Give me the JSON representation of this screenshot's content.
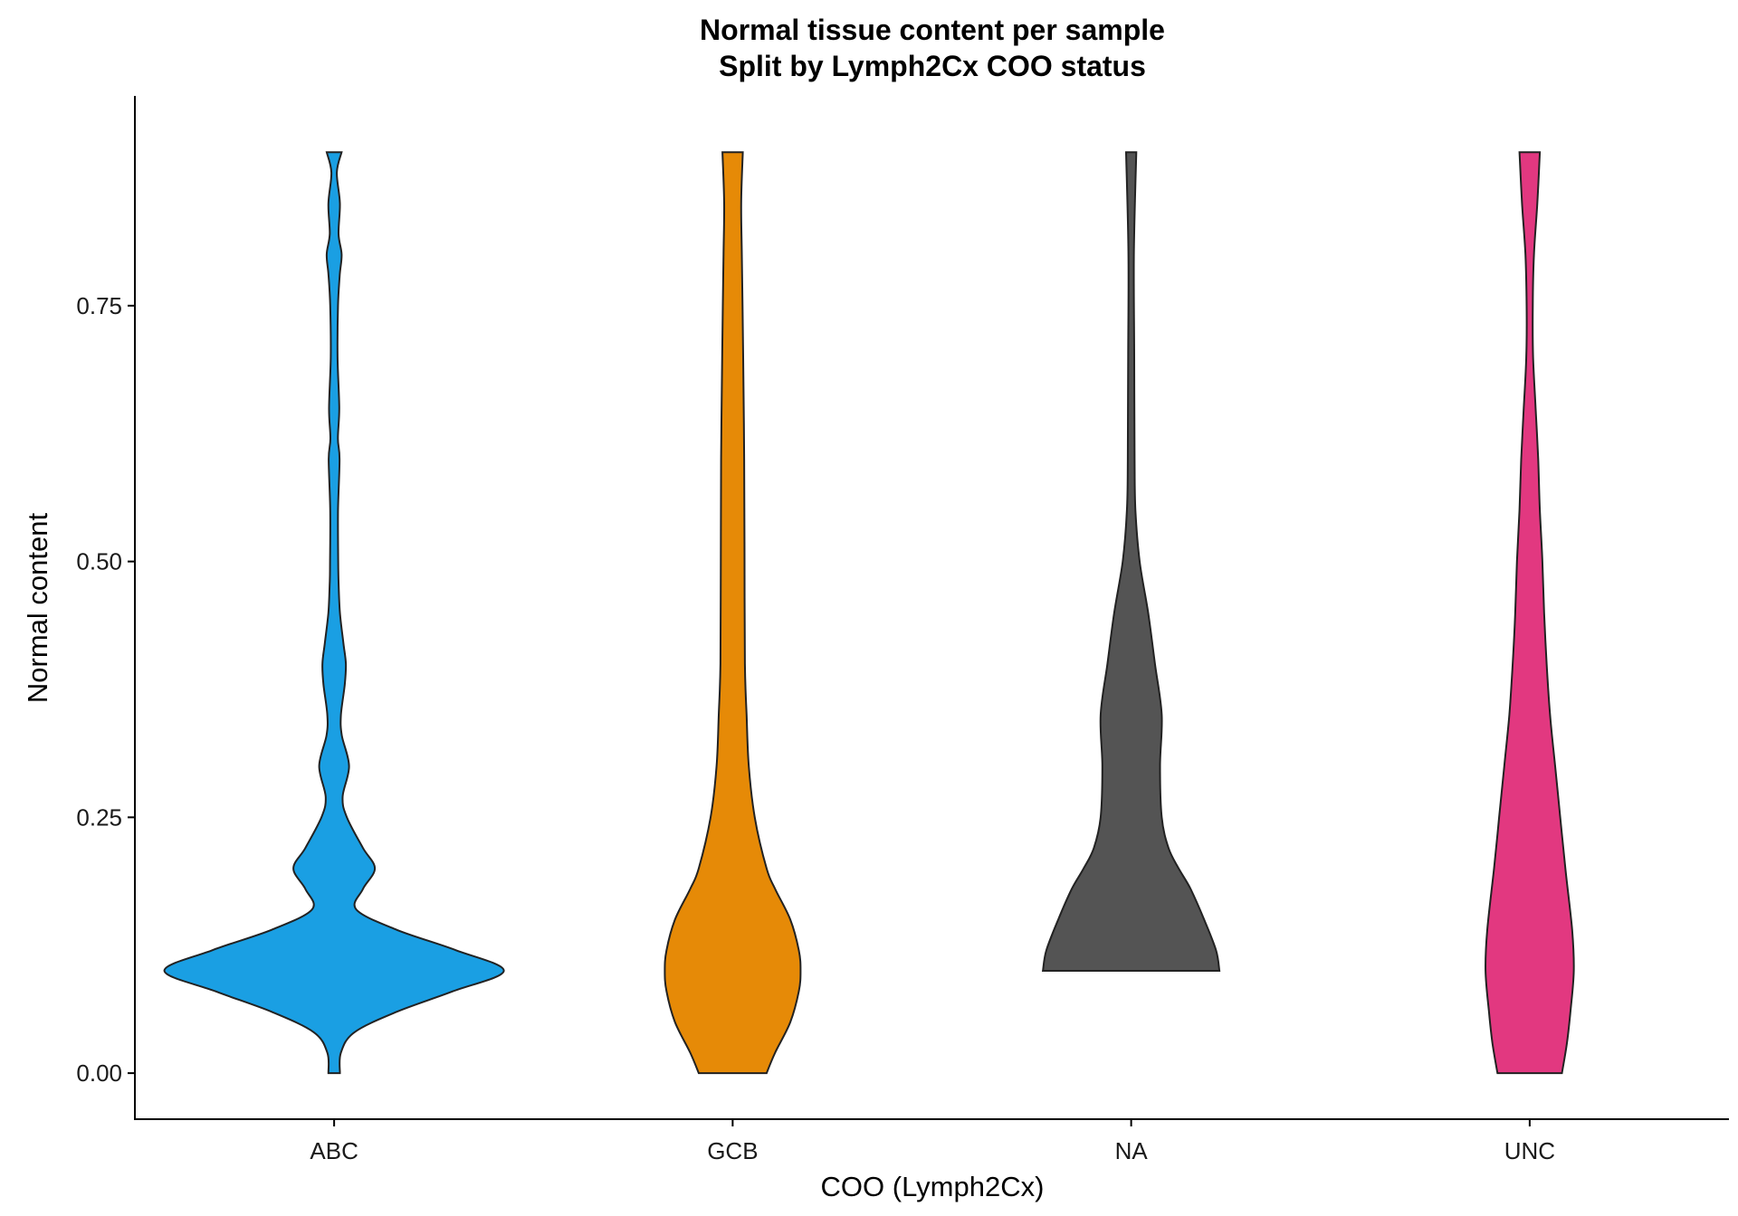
{
  "chart_data": {
    "type": "violin",
    "title": "Normal tissue content per sample",
    "subtitle": "Split by Lymph2Cx COO status",
    "xlabel": "COO (Lymph2Cx)",
    "ylabel": "Normal content",
    "ylim": [
      -0.045,
      0.955
    ],
    "yticks": [
      0,
      0.25,
      0.5,
      0.75
    ],
    "ytick_labels": [
      "0.00",
      "0.25",
      "0.50",
      "0.75"
    ],
    "grid": false,
    "legend": "none",
    "categories": [
      "ABC",
      "GCB",
      "NA",
      "UNC"
    ],
    "series": [
      {
        "category": "ABC",
        "color": "#1a9fe3",
        "range": [
          0.0,
          0.9
        ],
        "density": [
          [
            0.0,
            0.034
          ],
          [
            0.02,
            0.04
          ],
          [
            0.04,
            0.12
          ],
          [
            0.06,
            0.37
          ],
          [
            0.08,
            0.7
          ],
          [
            0.1,
            1.0
          ],
          [
            0.12,
            0.72
          ],
          [
            0.14,
            0.37
          ],
          [
            0.16,
            0.13
          ],
          [
            0.18,
            0.17
          ],
          [
            0.2,
            0.24
          ],
          [
            0.22,
            0.17
          ],
          [
            0.25,
            0.075
          ],
          [
            0.27,
            0.05
          ],
          [
            0.3,
            0.088
          ],
          [
            0.33,
            0.045
          ],
          [
            0.35,
            0.04
          ],
          [
            0.38,
            0.063
          ],
          [
            0.4,
            0.069
          ],
          [
            0.42,
            0.055
          ],
          [
            0.45,
            0.034
          ],
          [
            0.48,
            0.026
          ],
          [
            0.5,
            0.024
          ],
          [
            0.55,
            0.023
          ],
          [
            0.6,
            0.032
          ],
          [
            0.62,
            0.022
          ],
          [
            0.65,
            0.03
          ],
          [
            0.7,
            0.02
          ],
          [
            0.75,
            0.023
          ],
          [
            0.78,
            0.033
          ],
          [
            0.8,
            0.044
          ],
          [
            0.82,
            0.026
          ],
          [
            0.85,
            0.034
          ],
          [
            0.88,
            0.016
          ],
          [
            0.9,
            0.044
          ]
        ]
      },
      {
        "category": "GCB",
        "color": "#e68a07",
        "range": [
          0.0,
          0.9
        ],
        "density": [
          [
            0.0,
            0.2
          ],
          [
            0.02,
            0.25
          ],
          [
            0.05,
            0.34
          ],
          [
            0.08,
            0.39
          ],
          [
            0.1,
            0.4
          ],
          [
            0.12,
            0.39
          ],
          [
            0.15,
            0.34
          ],
          [
            0.18,
            0.25
          ],
          [
            0.2,
            0.2
          ],
          [
            0.25,
            0.13
          ],
          [
            0.3,
            0.095
          ],
          [
            0.35,
            0.082
          ],
          [
            0.4,
            0.072
          ],
          [
            0.5,
            0.07
          ],
          [
            0.6,
            0.068
          ],
          [
            0.7,
            0.062
          ],
          [
            0.75,
            0.058
          ],
          [
            0.8,
            0.054
          ],
          [
            0.85,
            0.05
          ],
          [
            0.9,
            0.06
          ]
        ]
      },
      {
        "category": "NA",
        "color": "#545454",
        "range": [
          0.1,
          0.9
        ],
        "density": [
          [
            0.1,
            0.52
          ],
          [
            0.12,
            0.5
          ],
          [
            0.15,
            0.43
          ],
          [
            0.18,
            0.35
          ],
          [
            0.2,
            0.28
          ],
          [
            0.22,
            0.22
          ],
          [
            0.25,
            0.18
          ],
          [
            0.3,
            0.17
          ],
          [
            0.35,
            0.18
          ],
          [
            0.4,
            0.14
          ],
          [
            0.45,
            0.1
          ],
          [
            0.5,
            0.05
          ],
          [
            0.55,
            0.025
          ],
          [
            0.6,
            0.02
          ],
          [
            0.7,
            0.018
          ],
          [
            0.8,
            0.016
          ],
          [
            0.9,
            0.03
          ]
        ]
      },
      {
        "category": "UNC",
        "color": "#e23880",
        "range": [
          0.0,
          0.9
        ],
        "density": [
          [
            0.0,
            0.19
          ],
          [
            0.03,
            0.22
          ],
          [
            0.06,
            0.24
          ],
          [
            0.1,
            0.26
          ],
          [
            0.14,
            0.25
          ],
          [
            0.2,
            0.21
          ],
          [
            0.25,
            0.18
          ],
          [
            0.3,
            0.15
          ],
          [
            0.35,
            0.12
          ],
          [
            0.4,
            0.1
          ],
          [
            0.45,
            0.085
          ],
          [
            0.5,
            0.075
          ],
          [
            0.55,
            0.06
          ],
          [
            0.6,
            0.05
          ],
          [
            0.65,
            0.035
          ],
          [
            0.7,
            0.02
          ],
          [
            0.75,
            0.018
          ],
          [
            0.8,
            0.025
          ],
          [
            0.85,
            0.045
          ],
          [
            0.9,
            0.06
          ]
        ]
      }
    ]
  }
}
